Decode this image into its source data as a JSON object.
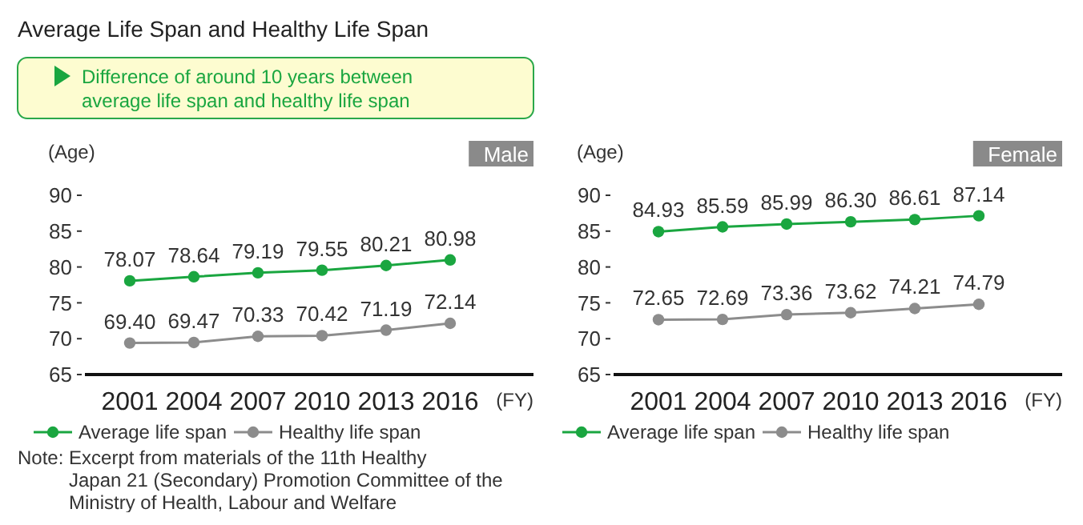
{
  "chart_data": [
    {
      "type": "line",
      "title": "Average Life Span and Healthy Life Span",
      "subtitle": "Male",
      "ylabel": "(Age)",
      "xlabel": "(FY)",
      "annotations": [
        "Difference of around 10 years between average life span and healthy life span",
        "Note: Excerpt from materials of the 11th Healthy Japan 21 (Secondary) Promotion Committee of the Ministry of Health, Labour and Welfare"
      ],
      "categories": [
        "2001",
        "2004",
        "2007",
        "2010",
        "2013",
        "2016"
      ],
      "series": [
        {
          "name": "Average life span",
          "color": "#1aa640",
          "values": [
            78.07,
            78.64,
            79.19,
            79.55,
            80.21,
            80.98
          ],
          "value_labels": [
            "78.07",
            "78.64",
            "79.19",
            "79.55",
            "80.21",
            "80.98"
          ]
        },
        {
          "name": "Healthy life span",
          "color": "#8c8c8c",
          "values": [
            69.4,
            69.47,
            70.33,
            70.42,
            71.19,
            72.14
          ],
          "value_labels": [
            "69.40",
            "69.47",
            "70.33",
            "70.42",
            "71.19",
            "72.14"
          ]
        }
      ],
      "ylim": [
        65,
        90
      ],
      "yticks": [
        65,
        70,
        75,
        80,
        85,
        90
      ],
      "grid": false,
      "legend": "bottom",
      "marker": "circle"
    },
    {
      "type": "line",
      "subtitle": "Female",
      "ylabel": "(Age)",
      "xlabel": "(FY)",
      "categories": [
        "2001",
        "2004",
        "2007",
        "2010",
        "2013",
        "2016"
      ],
      "series": [
        {
          "name": "Average life span",
          "color": "#1aa640",
          "values": [
            84.93,
            85.59,
            85.99,
            86.3,
            86.61,
            87.14
          ],
          "value_labels": [
            "84.93",
            "85.59",
            "85.99",
            "86.30",
            "86.61",
            "87.14"
          ]
        },
        {
          "name": "Healthy life span",
          "color": "#8c8c8c",
          "values": [
            72.65,
            72.69,
            73.36,
            73.62,
            74.21,
            74.79
          ],
          "value_labels": [
            "72.65",
            "72.69",
            "73.36",
            "73.62",
            "74.21",
            "74.79"
          ]
        }
      ],
      "ylim": [
        65,
        90
      ],
      "yticks": [
        65,
        70,
        75,
        80,
        85,
        90
      ],
      "grid": false,
      "legend": "bottom",
      "marker": "circle"
    }
  ]
}
